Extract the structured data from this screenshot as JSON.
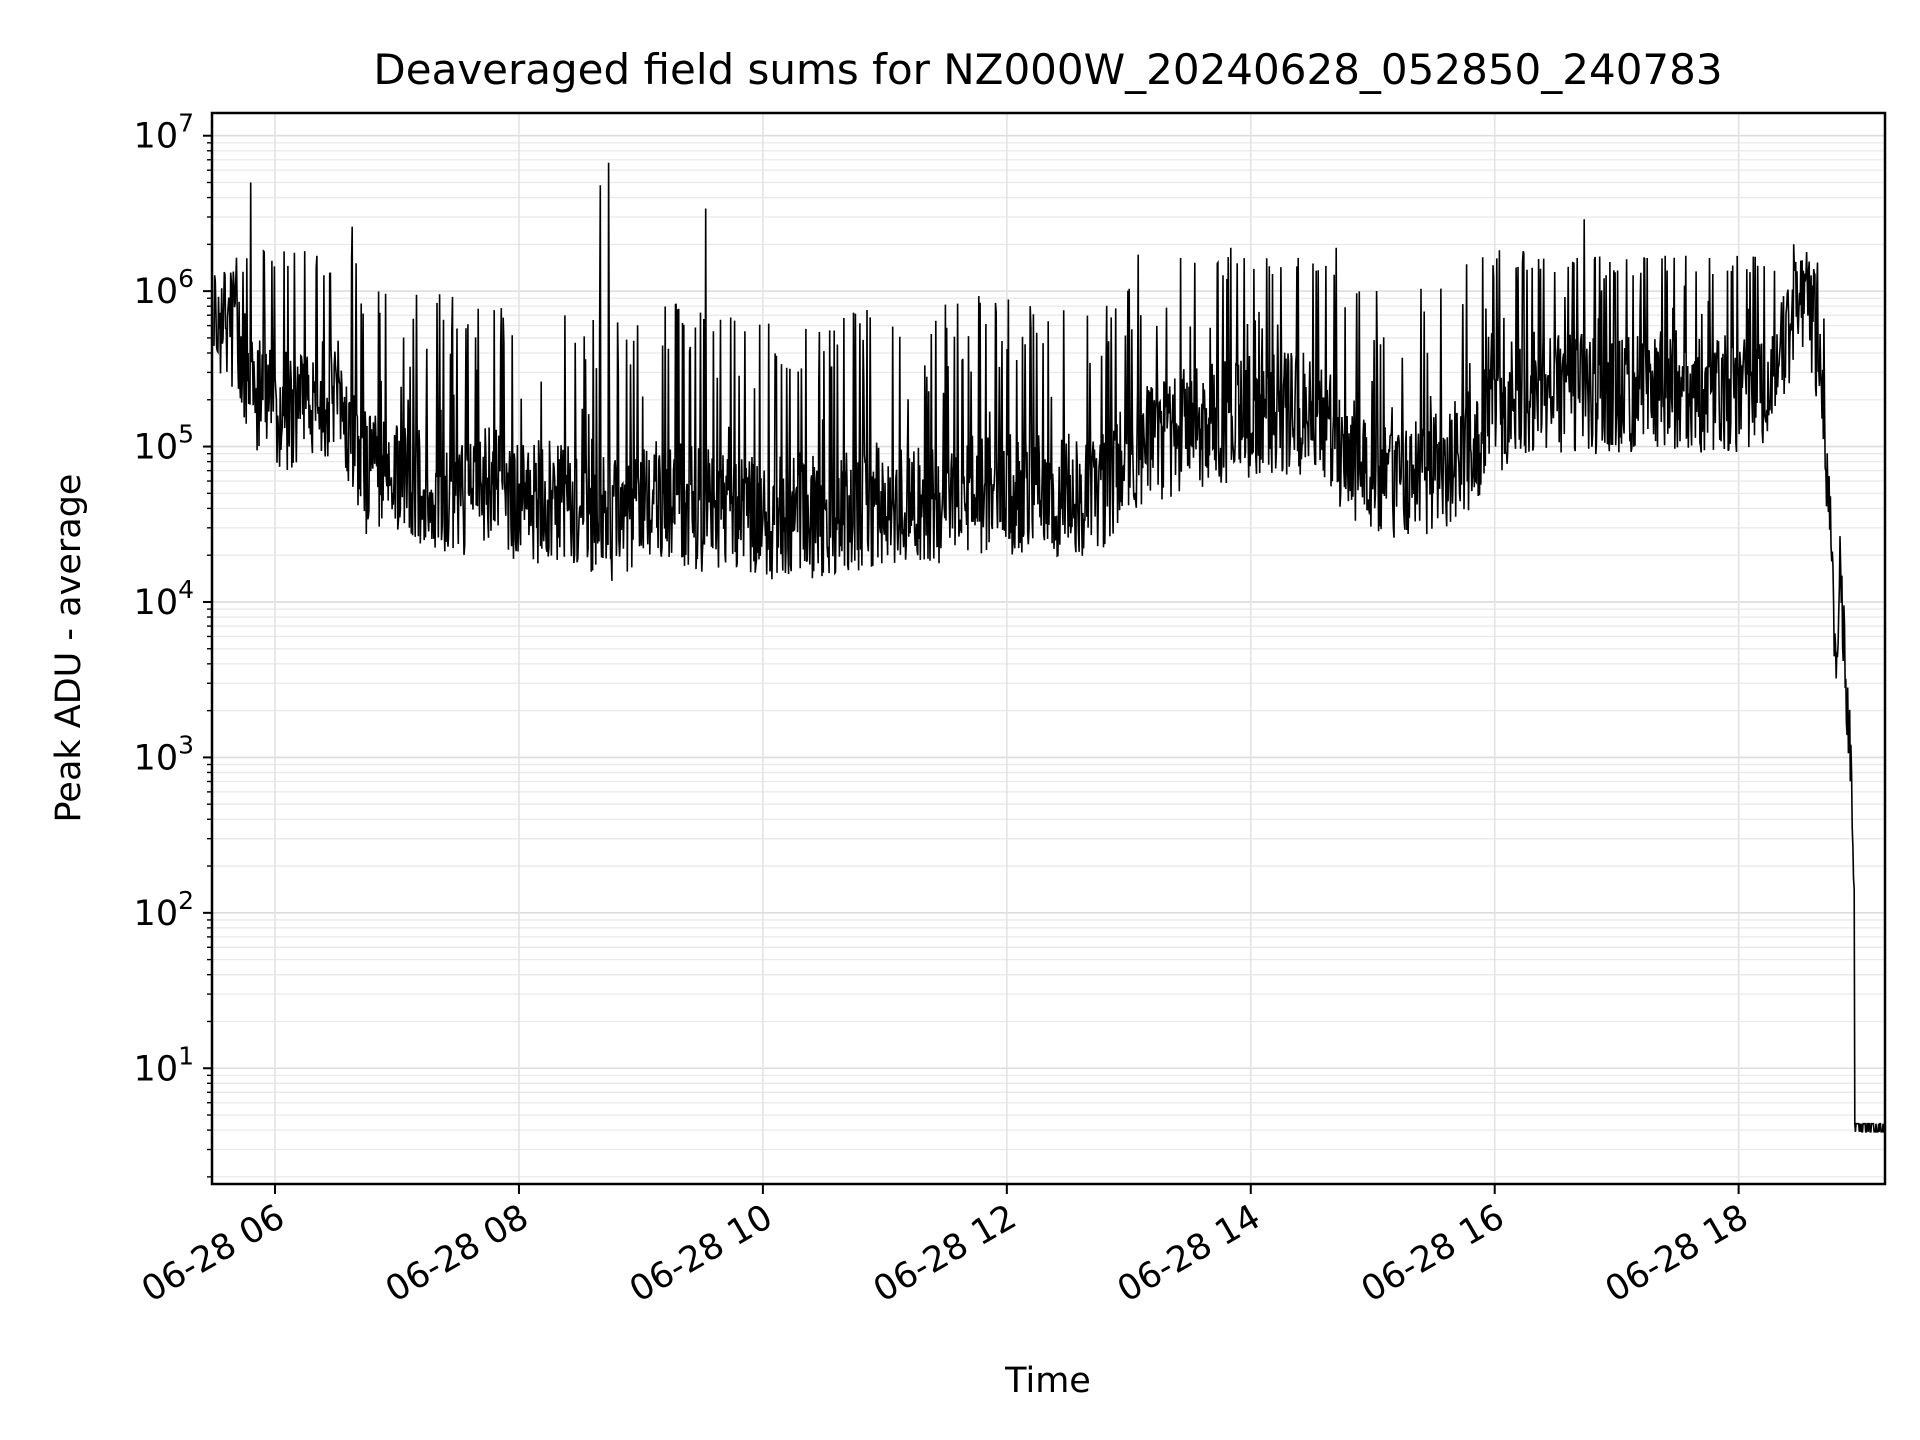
{
  "chart_data": {
    "type": "line",
    "title": "Deaveraged field sums for NZ000W_20240628_052850_240783",
    "xlabel": "Time",
    "ylabel": "Peak ADU - average",
    "yscale": "log",
    "grid": true,
    "xlim": [
      "2024-06-28 05:29",
      "2024-06-28 19:12"
    ],
    "ylim": [
      1.8,
      14000000
    ],
    "x_ticks": [
      "06-28 06",
      "06-28 08",
      "06-28 10",
      "06-28 12",
      "06-28 14",
      "06-28 16",
      "06-28 18"
    ],
    "y_ticks": [
      {
        "base": "10",
        "exp": "1",
        "value": 10
      },
      {
        "base": "10",
        "exp": "2",
        "value": 100
      },
      {
        "base": "10",
        "exp": "3",
        "value": 1000
      },
      {
        "base": "10",
        "exp": "4",
        "value": 10000
      },
      {
        "base": "10",
        "exp": "5",
        "value": 100000
      },
      {
        "base": "10",
        "exp": "6",
        "value": 1000000
      },
      {
        "base": "10",
        "exp": "7",
        "value": 10000000
      }
    ],
    "series": [
      {
        "color": "#000000",
        "x": [
          "2024-06-28 05:30",
          "2024-06-28 05:40",
          "2024-06-28 05:50",
          "2024-06-28 06:00",
          "2024-06-28 06:15",
          "2024-06-28 06:30",
          "2024-06-28 06:45",
          "2024-06-28 07:00",
          "2024-06-28 07:15",
          "2024-06-28 07:30",
          "2024-06-28 07:45",
          "2024-06-28 08:00",
          "2024-06-28 08:15",
          "2024-06-28 08:30",
          "2024-06-28 08:45",
          "2024-06-28 09:00",
          "2024-06-28 09:15",
          "2024-06-28 09:30",
          "2024-06-28 09:45",
          "2024-06-28 10:00",
          "2024-06-28 10:15",
          "2024-06-28 10:30",
          "2024-06-28 10:45",
          "2024-06-28 11:00",
          "2024-06-28 11:15",
          "2024-06-28 11:30",
          "2024-06-28 11:45",
          "2024-06-28 12:00",
          "2024-06-28 12:15",
          "2024-06-28 12:30",
          "2024-06-28 12:45",
          "2024-06-28 13:00",
          "2024-06-28 13:15",
          "2024-06-28 13:30",
          "2024-06-28 13:45",
          "2024-06-28 14:00",
          "2024-06-28 14:15",
          "2024-06-28 14:30",
          "2024-06-28 14:45",
          "2024-06-28 15:00",
          "2024-06-28 15:15",
          "2024-06-28 15:30",
          "2024-06-28 15:45",
          "2024-06-28 16:00",
          "2024-06-28 16:15",
          "2024-06-28 16:30",
          "2024-06-28 16:45",
          "2024-06-28 17:00",
          "2024-06-28 17:15",
          "2024-06-28 17:30",
          "2024-06-28 17:45",
          "2024-06-28 18:00",
          "2024-06-28 18:15",
          "2024-06-28 18:25",
          "2024-06-28 18:30",
          "2024-06-28 18:35",
          "2024-06-28 18:40",
          "2024-06-28 18:45",
          "2024-06-28 18:48",
          "2024-06-28 18:50",
          "2024-06-28 18:52",
          "2024-06-28 18:55",
          "2024-06-28 19:00",
          "2024-06-28 19:12"
        ],
        "y": [
          700000,
          500000,
          200000,
          150000,
          150000,
          200000,
          60000,
          60000,
          50000,
          45000,
          50000,
          40000,
          40000,
          35000,
          30000,
          40000,
          40000,
          35000,
          35000,
          30000,
          35000,
          30000,
          35000,
          40000,
          40000,
          40000,
          45000,
          45000,
          45000,
          45000,
          45000,
          80000,
          100000,
          120000,
          130000,
          140000,
          150000,
          150000,
          90000,
          60000,
          50000,
          60000,
          80000,
          150000,
          200000,
          200000,
          200000,
          200000,
          220000,
          220000,
          200000,
          200000,
          250000,
          500000,
          1000000,
          800000,
          300000,
          30000,
          3000,
          20000,
          5000,
          1000,
          4,
          4
        ],
        "spikes": [
          {
            "x": "2024-06-28 05:48",
            "y": 5000000
          },
          {
            "x": "2024-06-28 06:38",
            "y": 2600000
          },
          {
            "x": "2024-06-28 08:40",
            "y": 4800000
          },
          {
            "x": "2024-06-28 08:44",
            "y": 6700000
          },
          {
            "x": "2024-06-28 09:32",
            "y": 3400000
          },
          {
            "x": "2024-06-28 13:50",
            "y": 1900000
          },
          {
            "x": "2024-06-28 14:42",
            "y": 1900000
          },
          {
            "x": "2024-06-28 16:44",
            "y": 2900000
          },
          {
            "x": "2024-06-28 18:27",
            "y": 2000000
          }
        ]
      }
    ]
  }
}
